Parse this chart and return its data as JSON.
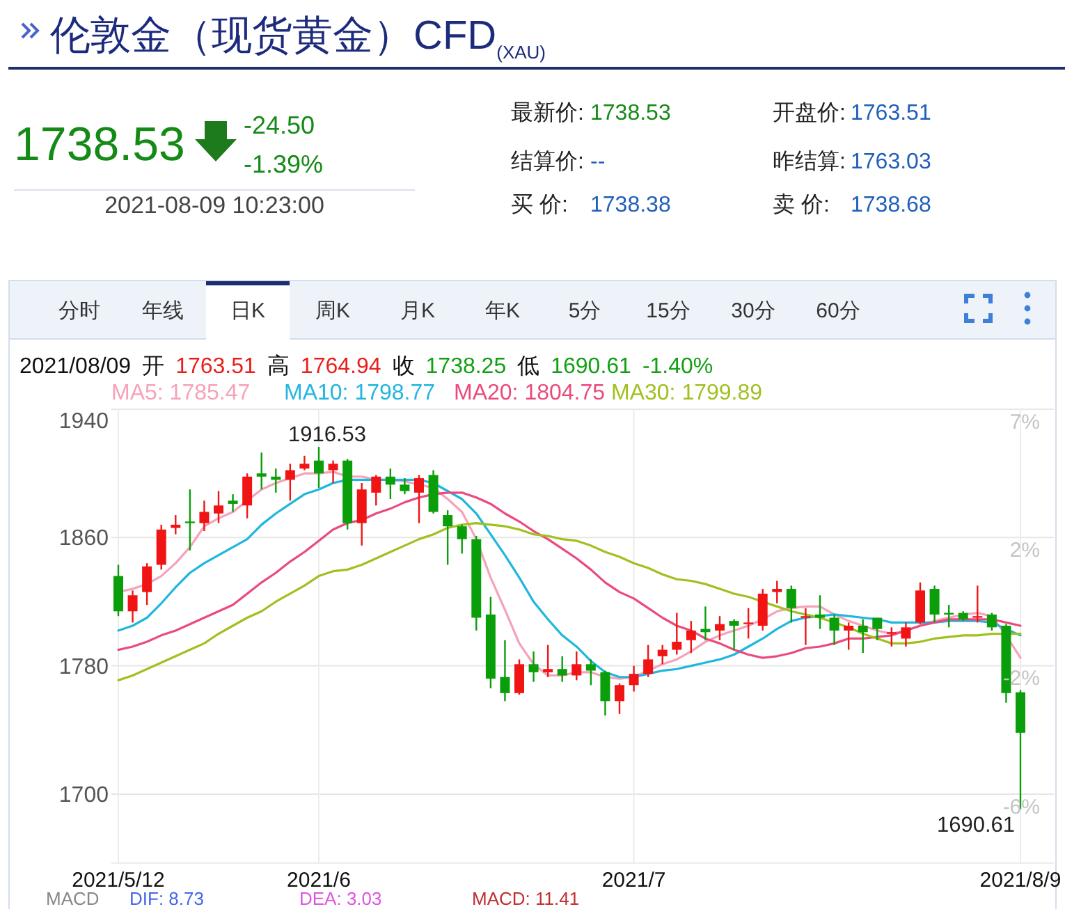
{
  "chart_data": {
    "type": "candlestick",
    "title": "伦敦金（现货黄金）CFD$_{(XAU)}$",
    "categories": [
      "2021/5/12",
      null,
      null,
      null,
      null,
      null,
      null,
      null,
      null,
      null,
      null,
      null,
      null,
      null,
      "2021/6",
      null,
      null,
      null,
      null,
      null,
      null,
      null,
      null,
      null,
      null,
      null,
      null,
      null,
      null,
      null,
      null,
      null,
      null,
      null,
      null,
      null,
      "2021/7",
      null,
      null,
      null,
      null,
      null,
      null,
      null,
      null,
      null,
      null,
      null,
      null,
      null,
      null,
      null,
      null,
      null,
      null,
      null,
      null,
      null,
      null,
      null,
      null,
      null,
      null,
      "2021/8/9"
    ],
    "ohlc": [
      [
        1836,
        1843,
        1811,
        1814
      ],
      [
        1814,
        1827,
        1807,
        1824
      ],
      [
        1826,
        1844,
        1818,
        1842
      ],
      [
        1843,
        1868,
        1840,
        1865
      ],
      [
        1866,
        1874,
        1862,
        1868
      ],
      [
        1870,
        1890,
        1852,
        1869
      ],
      [
        1869,
        1883,
        1864,
        1876
      ],
      [
        1875,
        1889,
        1869,
        1880
      ],
      [
        1883,
        1887,
        1876,
        1881
      ],
      [
        1880,
        1900,
        1872,
        1898
      ],
      [
        1900,
        1913,
        1890,
        1898
      ],
      [
        1898,
        1903,
        1888,
        1896
      ],
      [
        1896,
        1906,
        1883,
        1902
      ],
      [
        1903,
        1911,
        1902,
        1906
      ],
      [
        1908,
        1916.53,
        1891,
        1900
      ],
      [
        1902,
        1908,
        1894,
        1906
      ],
      [
        1908,
        1909,
        1865,
        1869
      ],
      [
        1869,
        1894,
        1855,
        1890
      ],
      [
        1888,
        1899,
        1880,
        1898
      ],
      [
        1898,
        1903,
        1884,
        1893
      ],
      [
        1893,
        1897,
        1887,
        1889
      ],
      [
        1888,
        1899,
        1869,
        1897
      ],
      [
        1899,
        1902,
        1875,
        1876
      ],
      [
        1874,
        1877,
        1843,
        1867
      ],
      [
        1867,
        1868,
        1850,
        1859
      ],
      [
        1859,
        1861,
        1802,
        1810
      ],
      [
        1812,
        1823,
        1766,
        1772
      ],
      [
        1773,
        1796,
        1758,
        1763
      ],
      [
        1763,
        1784,
        1762,
        1781
      ],
      [
        1781,
        1789,
        1770,
        1776
      ],
      [
        1776,
        1793,
        1773,
        1778
      ],
      [
        1778,
        1786,
        1770,
        1774
      ],
      [
        1774,
        1789,
        1771,
        1781
      ],
      [
        1781,
        1784,
        1768,
        1777
      ],
      [
        1776,
        1777,
        1749,
        1758
      ],
      [
        1758,
        1769,
        1750,
        1768
      ],
      [
        1768,
        1780,
        1764,
        1775
      ],
      [
        1775,
        1793,
        1773,
        1784
      ],
      [
        1786,
        1793,
        1781,
        1790
      ],
      [
        1790,
        1813,
        1787,
        1795
      ],
      [
        1796,
        1808,
        1788,
        1802
      ],
      [
        1803,
        1817,
        1796,
        1801
      ],
      [
        1802,
        1811,
        1796,
        1806
      ],
      [
        1808,
        1809,
        1790,
        1805
      ],
      [
        1806,
        1816,
        1797,
        1807
      ],
      [
        1805,
        1828,
        1802,
        1825
      ],
      [
        1826,
        1833,
        1819,
        1828
      ],
      [
        1828,
        1830,
        1807,
        1816
      ],
      [
        1810,
        1816,
        1793,
        1811
      ],
      [
        1812,
        1824,
        1803,
        1810
      ],
      [
        1810,
        1812,
        1793,
        1802
      ],
      [
        1802,
        1807,
        1790,
        1805
      ],
      [
        1805,
        1809,
        1788,
        1801
      ],
      [
        1810,
        1810,
        1796,
        1803
      ],
      [
        1800,
        1804,
        1792,
        1801
      ],
      [
        1797,
        1807,
        1792,
        1804
      ],
      [
        1807,
        1832,
        1806,
        1827
      ],
      [
        1828,
        1830,
        1807,
        1812
      ],
      [
        1813,
        1818,
        1804,
        1812
      ],
      [
        1813,
        1814,
        1808,
        1809
      ],
      [
        1810,
        1830,
        1807,
        1811
      ],
      [
        1812,
        1813,
        1802,
        1804
      ],
      [
        1805,
        1806,
        1757,
        1763
      ],
      [
        1763.51,
        1764.94,
        1690.61,
        1738.25
      ]
    ],
    "colors": [
      "#0a9e0a",
      "#f01414",
      "#f01414",
      "#f01414",
      "#f01414",
      "#0a9e0a",
      "#f01414",
      "#f01414",
      "#0a9e0a",
      "#f01414",
      "#0a9e0a",
      "#0a9e0a",
      "#f01414",
      "#f01414",
      "#0a9e0a",
      "#f01414",
      "#0a9e0a",
      "#f01414",
      "#f01414",
      "#0a9e0a",
      "#0a9e0a",
      "#f01414",
      "#0a9e0a",
      "#0a9e0a",
      "#0a9e0a",
      "#0a9e0a",
      "#0a9e0a",
      "#0a9e0a",
      "#f01414",
      "#0a9e0a",
      "#f01414",
      "#0a9e0a",
      "#f01414",
      "#0a9e0a",
      "#0a9e0a",
      "#f01414",
      "#f01414",
      "#f01414",
      "#f01414",
      "#f01414",
      "#f01414",
      "#0a9e0a",
      "#f01414",
      "#0a9e0a",
      "#f01414",
      "#f01414",
      "#f01414",
      "#0a9e0a",
      "#f01414",
      "#0a9e0a",
      "#0a9e0a",
      "#f01414",
      "#0a9e0a",
      "#0a9e0a",
      "#f01414",
      "#f01414",
      "#f01414",
      "#0a9e0a",
      "#0a9e0a",
      "#0a9e0a",
      "#f01414",
      "#0a9e0a",
      "#0a9e0a",
      "#0a9e0a"
    ],
    "series": [
      {
        "name": "MA5: 1785.47",
        "type": "line",
        "color": "#f5a3b8",
        "values": [
          1826,
          1828,
          1831,
          1836,
          1844,
          1854,
          1867,
          1872,
          1876,
          1883,
          1890,
          1894,
          1897,
          1900,
          1900,
          1901,
          1898,
          1898,
          1896,
          1896,
          1895,
          1893,
          1891,
          1884,
          1876,
          1859,
          1835,
          1815,
          1794,
          1781,
          1774,
          1774,
          1776,
          1776,
          1773,
          1772,
          1773,
          1777,
          1781,
          1784,
          1789,
          1795,
          1799,
          1802,
          1805,
          1809,
          1814,
          1816,
          1817,
          1817,
          1812,
          1808,
          1805,
          1802,
          1800,
          1802,
          1805,
          1808,
          1810,
          1812,
          1813,
          1811,
          1799,
          1785
        ]
      },
      {
        "name": "MA10: 1798.77",
        "type": "line",
        "color": "#1fb6df",
        "values": [
          1802,
          1805,
          1810,
          1819,
          1829,
          1838,
          1844,
          1849,
          1854,
          1859,
          1868,
          1875,
          1881,
          1887,
          1890,
          1894,
          1896,
          1896,
          1896,
          1896,
          1896,
          1896,
          1894,
          1889,
          1884,
          1875,
          1862,
          1849,
          1835,
          1820,
          1809,
          1799,
          1792,
          1783,
          1776,
          1773,
          1773,
          1775,
          1777,
          1778,
          1780,
          1782,
          1784,
          1787,
          1792,
          1797,
          1803,
          1808,
          1810,
          1811,
          1812,
          1811,
          1810,
          1809,
          1807,
          1807,
          1807,
          1807,
          1808,
          1808,
          1808,
          1807,
          1803,
          1799
        ]
      },
      {
        "name": "MA20: 1804.75",
        "type": "line",
        "color": "#ea4b7c",
        "values": [
          1790,
          1792,
          1795,
          1799,
          1802,
          1806,
          1810,
          1814,
          1818,
          1825,
          1832,
          1838,
          1845,
          1851,
          1858,
          1865,
          1869,
          1871,
          1875,
          1878,
          1882,
          1885,
          1887,
          1888,
          1888,
          1885,
          1881,
          1875,
          1870,
          1864,
          1859,
          1853,
          1847,
          1840,
          1832,
          1826,
          1822,
          1816,
          1810,
          1805,
          1802,
          1797,
          1794,
          1790,
          1787,
          1785,
          1786,
          1788,
          1791,
          1792,
          1794,
          1797,
          1797,
          1798,
          1799,
          1802,
          1805,
          1807,
          1809,
          1809,
          1809,
          1809,
          1807,
          1805
        ]
      },
      {
        "name": "MA30: 1799.89",
        "type": "line",
        "color": "#a0c020",
        "values": [
          1771,
          1774,
          1778,
          1782,
          1786,
          1790,
          1794,
          1800,
          1805,
          1810,
          1814,
          1820,
          1825,
          1830,
          1836,
          1839,
          1840,
          1843,
          1847,
          1851,
          1855,
          1859,
          1862,
          1866,
          1868,
          1869,
          1868,
          1867,
          1865,
          1862,
          1861,
          1859,
          1858,
          1855,
          1851,
          1848,
          1844,
          1841,
          1837,
          1834,
          1833,
          1831,
          1828,
          1825,
          1823,
          1820,
          1817,
          1814,
          1812,
          1810,
          1807,
          1804,
          1800,
          1797,
          1794,
          1794,
          1795,
          1797,
          1798,
          1799,
          1799,
          1800,
          1800,
          1800
        ]
      }
    ],
    "ylim": [
      1657,
      1940
    ],
    "yticks": [
      1700,
      1780,
      1860,
      1940
    ],
    "grid": true,
    "legend": "top left",
    "annotations": [
      "1738.53",
      "-24.50",
      "-1.39%",
      "2021-08-09 10:23:00",
      "最新价:",
      "1738.53",
      "开盘价:",
      "1763.51",
      "结算价:",
      "--",
      "昨结算:",
      "1763.03",
      "买 价:",
      "1738.38",
      "卖 价:",
      "1738.68",
      "分时",
      "年线",
      "日K",
      "周K",
      "月K",
      "年K",
      "5分",
      "15分",
      "30分",
      "60分",
      "2021/08/09",
      "开",
      "1763.51",
      "高",
      "1764.94",
      "收",
      "1738.25",
      "低",
      "1690.61",
      "-1.40%",
      "1916.53",
      "1690.61",
      "MACD",
      "DIF: 8.73",
      "DEA: 3.03",
      "MACD: 11.41",
      "7%",
      "2%",
      "-2%",
      "-6%"
    ]
  }
}
